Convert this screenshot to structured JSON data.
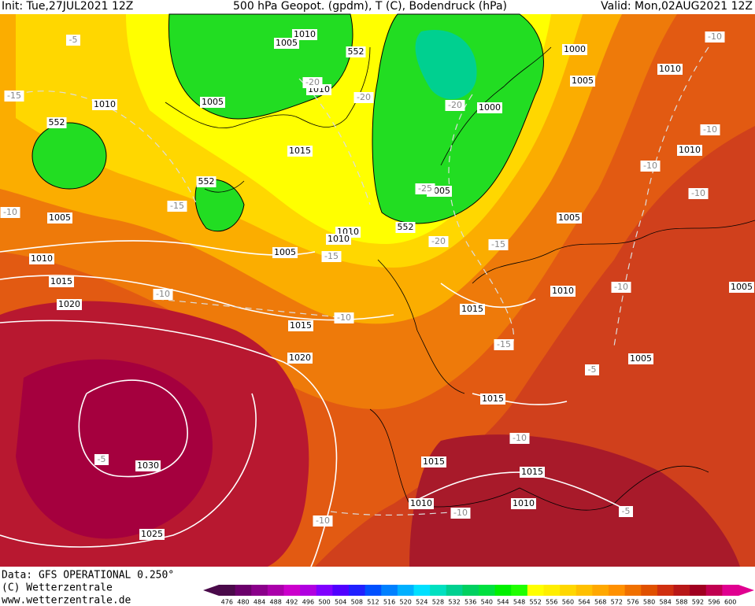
{
  "header": {
    "init": "Init: Tue,27JUL2021 12Z",
    "title": "500 hPa Geopot. (gpdm), T (C), Bodendruck (hPa)",
    "valid": "Valid: Mon,02AUG2021 12Z"
  },
  "map": {
    "pressure_labels": [
      "1010",
      "1005",
      "552",
      "1010",
      "1005",
      "1010",
      "552",
      "1015",
      "552",
      "1005",
      "1010",
      "1010",
      "552",
      "1005",
      "1010",
      "1015",
      "1020",
      "1015",
      "1020",
      "1030",
      "1025",
      "1000",
      "1005",
      "1010",
      "1010",
      "1000",
      "1005",
      "1005",
      "1010",
      "1015",
      "1005",
      "1015",
      "1015",
      "1015",
      "1010",
      "1010",
      "1005"
    ],
    "temperature_labels": [
      "-5",
      "-15",
      "-10",
      "-20",
      "-20",
      "-20",
      "-25",
      "-15",
      "-20",
      "-15",
      "-15",
      "-10",
      "-10",
      "-15",
      "-10",
      "-10",
      "-10",
      "-10",
      "-10",
      "-5",
      "-10",
      "-5",
      "-10",
      "-10",
      "-5"
    ]
  },
  "footer": {
    "data": "Data: GFS OPERATIONAL 0.250°",
    "copyright": "(C) Wetterzentrale",
    "url": "www.wetterzentrale.de"
  },
  "colorbar": {
    "labels": [
      476,
      480,
      484,
      488,
      492,
      496,
      500,
      504,
      508,
      512,
      516,
      520,
      524,
      528,
      532,
      536,
      540,
      544,
      548,
      552,
      556,
      560,
      564,
      568,
      572,
      576,
      580,
      584,
      588,
      592,
      596,
      600
    ],
    "colors": [
      "#4a0a4a",
      "#6a006a",
      "#8a008a",
      "#aa00aa",
      "#cc00cc",
      "#b000e0",
      "#8000ff",
      "#5000ff",
      "#2020ff",
      "#0050ff",
      "#0080ff",
      "#00b0ff",
      "#00e0ff",
      "#00e0c0",
      "#00d090",
      "#00d060",
      "#00e040",
      "#00f000",
      "#20ff00",
      "#ffff00",
      "#ffee00",
      "#ffd700",
      "#ffc000",
      "#ffa800",
      "#ff9000",
      "#f07000",
      "#e05000",
      "#d03010",
      "#b81818",
      "#a00020",
      "#c00050",
      "#e00090"
    ]
  }
}
